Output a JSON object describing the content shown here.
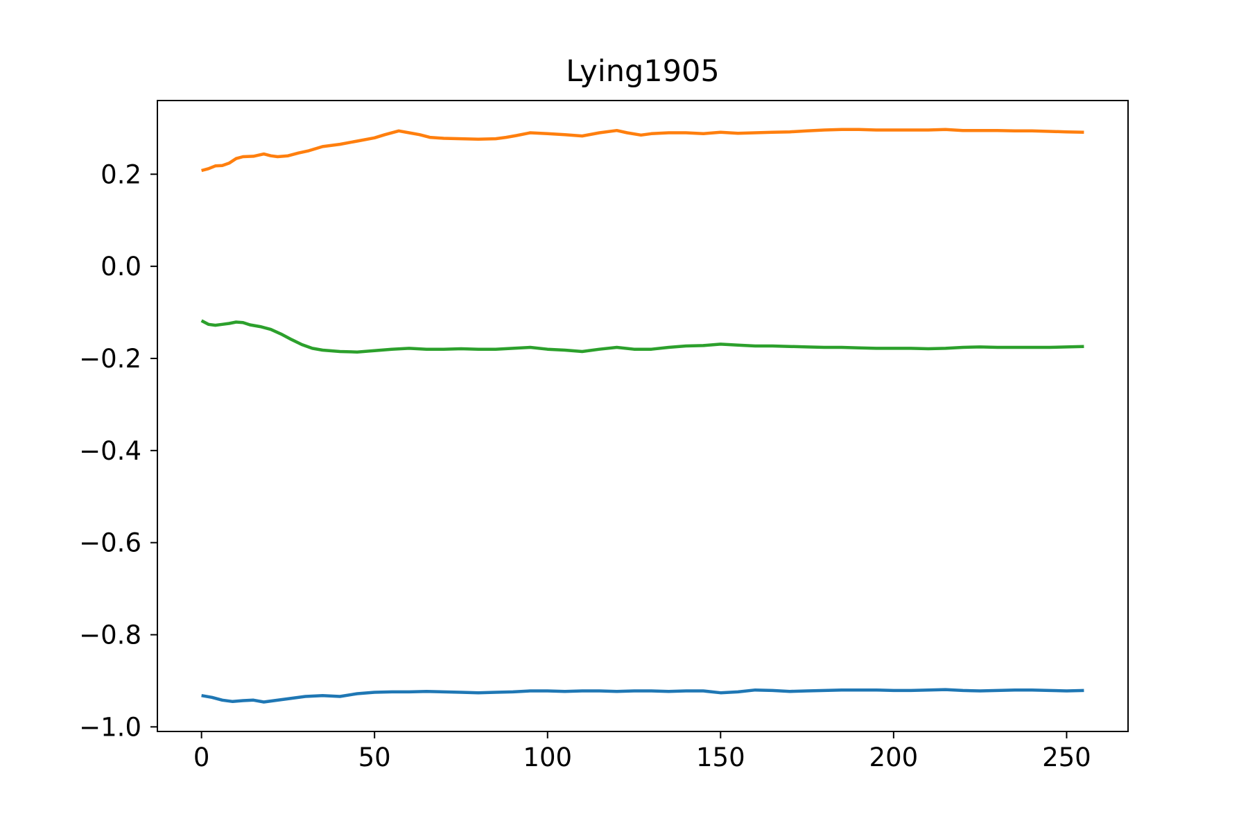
{
  "chart_data": {
    "type": "line",
    "title": "Lying1905",
    "xlabel": "",
    "ylabel": "",
    "xlim": [
      -12.75,
      267.75
    ],
    "ylim": [
      -1.01,
      0.36
    ],
    "xticks": [
      0,
      50,
      100,
      150,
      200,
      250
    ],
    "yticks": [
      -1.0,
      -0.8,
      -0.6,
      -0.4,
      -0.2,
      0.0,
      0.2
    ],
    "ytick_labels": [
      "−1.0",
      "−0.8",
      "−0.6",
      "−0.4",
      "−0.2",
      "0.0",
      "0.2"
    ],
    "grid": false,
    "series": [
      {
        "color": "#1f77b4",
        "points": [
          [
            0,
            -0.932
          ],
          [
            3,
            -0.936
          ],
          [
            6,
            -0.942
          ],
          [
            9,
            -0.945
          ],
          [
            12,
            -0.943
          ],
          [
            15,
            -0.942
          ],
          [
            18,
            -0.946
          ],
          [
            21,
            -0.943
          ],
          [
            24,
            -0.94
          ],
          [
            27,
            -0.937
          ],
          [
            30,
            -0.934
          ],
          [
            35,
            -0.932
          ],
          [
            40,
            -0.934
          ],
          [
            45,
            -0.928
          ],
          [
            50,
            -0.925
          ],
          [
            55,
            -0.924
          ],
          [
            60,
            -0.924
          ],
          [
            65,
            -0.923
          ],
          [
            70,
            -0.924
          ],
          [
            75,
            -0.925
          ],
          [
            80,
            -0.926
          ],
          [
            85,
            -0.925
          ],
          [
            90,
            -0.924
          ],
          [
            95,
            -0.922
          ],
          [
            100,
            -0.922
          ],
          [
            105,
            -0.923
          ],
          [
            110,
            -0.922
          ],
          [
            115,
            -0.922
          ],
          [
            120,
            -0.923
          ],
          [
            125,
            -0.922
          ],
          [
            130,
            -0.922
          ],
          [
            135,
            -0.923
          ],
          [
            140,
            -0.922
          ],
          [
            145,
            -0.922
          ],
          [
            150,
            -0.926
          ],
          [
            155,
            -0.924
          ],
          [
            160,
            -0.92
          ],
          [
            165,
            -0.921
          ],
          [
            170,
            -0.923
          ],
          [
            175,
            -0.922
          ],
          [
            180,
            -0.921
          ],
          [
            185,
            -0.92
          ],
          [
            190,
            -0.92
          ],
          [
            195,
            -0.92
          ],
          [
            200,
            -0.921
          ],
          [
            205,
            -0.921
          ],
          [
            210,
            -0.92
          ],
          [
            215,
            -0.919
          ],
          [
            220,
            -0.921
          ],
          [
            225,
            -0.922
          ],
          [
            230,
            -0.921
          ],
          [
            235,
            -0.92
          ],
          [
            240,
            -0.92
          ],
          [
            245,
            -0.921
          ],
          [
            250,
            -0.922
          ],
          [
            255,
            -0.921
          ]
        ]
      },
      {
        "color": "#ff7f0e",
        "points": [
          [
            0,
            0.208
          ],
          [
            2,
            0.212
          ],
          [
            4,
            0.218
          ],
          [
            6,
            0.219
          ],
          [
            8,
            0.224
          ],
          [
            10,
            0.234
          ],
          [
            12,
            0.238
          ],
          [
            15,
            0.239
          ],
          [
            18,
            0.244
          ],
          [
            20,
            0.24
          ],
          [
            22,
            0.238
          ],
          [
            25,
            0.24
          ],
          [
            28,
            0.246
          ],
          [
            31,
            0.251
          ],
          [
            35,
            0.26
          ],
          [
            40,
            0.265
          ],
          [
            45,
            0.272
          ],
          [
            50,
            0.279
          ],
          [
            53,
            0.286
          ],
          [
            57,
            0.294
          ],
          [
            60,
            0.29
          ],
          [
            63,
            0.286
          ],
          [
            66,
            0.28
          ],
          [
            70,
            0.278
          ],
          [
            75,
            0.277
          ],
          [
            80,
            0.276
          ],
          [
            85,
            0.277
          ],
          [
            88,
            0.28
          ],
          [
            91,
            0.284
          ],
          [
            95,
            0.29
          ],
          [
            100,
            0.288
          ],
          [
            105,
            0.286
          ],
          [
            110,
            0.283
          ],
          [
            115,
            0.29
          ],
          [
            120,
            0.295
          ],
          [
            123,
            0.29
          ],
          [
            127,
            0.285
          ],
          [
            130,
            0.288
          ],
          [
            135,
            0.29
          ],
          [
            140,
            0.29
          ],
          [
            145,
            0.288
          ],
          [
            150,
            0.291
          ],
          [
            155,
            0.289
          ],
          [
            160,
            0.29
          ],
          [
            165,
            0.291
          ],
          [
            170,
            0.292
          ],
          [
            175,
            0.294
          ],
          [
            180,
            0.296
          ],
          [
            185,
            0.297
          ],
          [
            190,
            0.297
          ],
          [
            195,
            0.296
          ],
          [
            200,
            0.296
          ],
          [
            205,
            0.296
          ],
          [
            210,
            0.296
          ],
          [
            215,
            0.297
          ],
          [
            220,
            0.295
          ],
          [
            225,
            0.295
          ],
          [
            230,
            0.295
          ],
          [
            235,
            0.294
          ],
          [
            240,
            0.294
          ],
          [
            245,
            0.293
          ],
          [
            250,
            0.292
          ],
          [
            255,
            0.291
          ]
        ]
      },
      {
        "color": "#2ca02c",
        "points": [
          [
            0,
            -0.118
          ],
          [
            2,
            -0.126
          ],
          [
            4,
            -0.128
          ],
          [
            6,
            -0.126
          ],
          [
            8,
            -0.124
          ],
          [
            10,
            -0.121
          ],
          [
            12,
            -0.122
          ],
          [
            14,
            -0.127
          ],
          [
            17,
            -0.131
          ],
          [
            20,
            -0.137
          ],
          [
            23,
            -0.147
          ],
          [
            26,
            -0.159
          ],
          [
            29,
            -0.17
          ],
          [
            32,
            -0.178
          ],
          [
            35,
            -0.182
          ],
          [
            40,
            -0.185
          ],
          [
            45,
            -0.186
          ],
          [
            50,
            -0.183
          ],
          [
            55,
            -0.18
          ],
          [
            60,
            -0.178
          ],
          [
            65,
            -0.18
          ],
          [
            70,
            -0.18
          ],
          [
            75,
            -0.179
          ],
          [
            80,
            -0.18
          ],
          [
            85,
            -0.18
          ],
          [
            90,
            -0.178
          ],
          [
            95,
            -0.176
          ],
          [
            100,
            -0.18
          ],
          [
            105,
            -0.182
          ],
          [
            110,
            -0.185
          ],
          [
            115,
            -0.18
          ],
          [
            120,
            -0.176
          ],
          [
            125,
            -0.18
          ],
          [
            130,
            -0.18
          ],
          [
            135,
            -0.176
          ],
          [
            140,
            -0.173
          ],
          [
            145,
            -0.172
          ],
          [
            150,
            -0.169
          ],
          [
            155,
            -0.171
          ],
          [
            160,
            -0.173
          ],
          [
            165,
            -0.173
          ],
          [
            170,
            -0.174
          ],
          [
            175,
            -0.175
          ],
          [
            180,
            -0.176
          ],
          [
            185,
            -0.176
          ],
          [
            190,
            -0.177
          ],
          [
            195,
            -0.178
          ],
          [
            200,
            -0.178
          ],
          [
            205,
            -0.178
          ],
          [
            210,
            -0.179
          ],
          [
            215,
            -0.178
          ],
          [
            220,
            -0.176
          ],
          [
            225,
            -0.175
          ],
          [
            230,
            -0.176
          ],
          [
            235,
            -0.176
          ],
          [
            240,
            -0.176
          ],
          [
            245,
            -0.176
          ],
          [
            250,
            -0.175
          ],
          [
            255,
            -0.174
          ]
        ]
      }
    ]
  }
}
